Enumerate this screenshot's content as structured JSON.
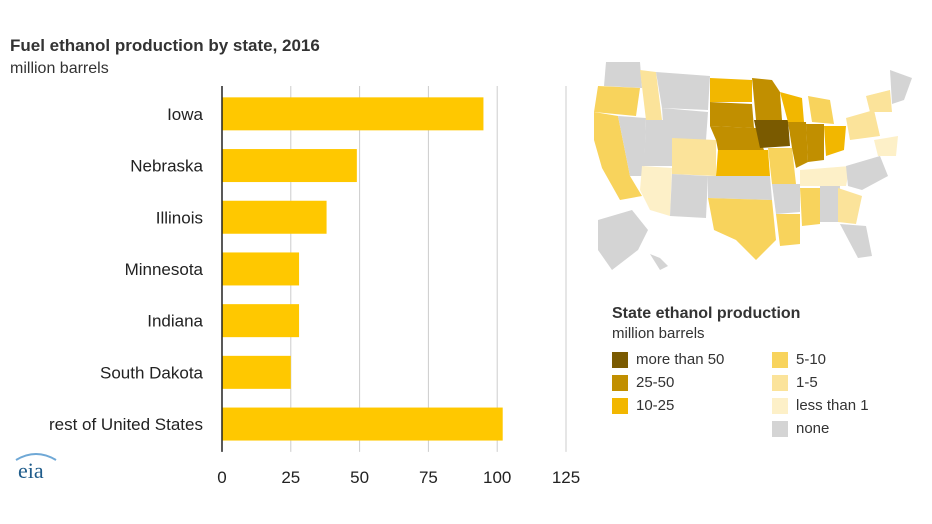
{
  "chart_data": {
    "type": "bar",
    "orientation": "horizontal",
    "title": "Fuel ethanol production by state, 2016",
    "subtitle": "million barrels",
    "categories": [
      "Iowa",
      "Nebraska",
      "Illinois",
      "Minnesota",
      "Indiana",
      "South Dakota",
      "rest of United States"
    ],
    "values": [
      95,
      49,
      38,
      28,
      28,
      25,
      102
    ],
    "xlim": [
      0,
      125
    ],
    "xticks": [
      "0",
      "25",
      "50",
      "75",
      "100",
      "125"
    ],
    "grid": true,
    "bar_color": "#FFC800"
  },
  "map": {
    "legend_title": "State ethanol production",
    "legend_subtitle": "million barrels",
    "legend_items": [
      {
        "label": "more than 50",
        "color": "#7a5a00"
      },
      {
        "label": "25-50",
        "color": "#c18f00"
      },
      {
        "label": "10-25",
        "color": "#f2b700"
      },
      {
        "label": "5-10",
        "color": "#f8d35c"
      },
      {
        "label": "1-5",
        "color": "#fbe39a"
      },
      {
        "label": "less than 1",
        "color": "#fdf0c8"
      },
      {
        "label": "none",
        "color": "#d4d4d4"
      }
    ]
  },
  "logo": {
    "text": "eia"
  }
}
